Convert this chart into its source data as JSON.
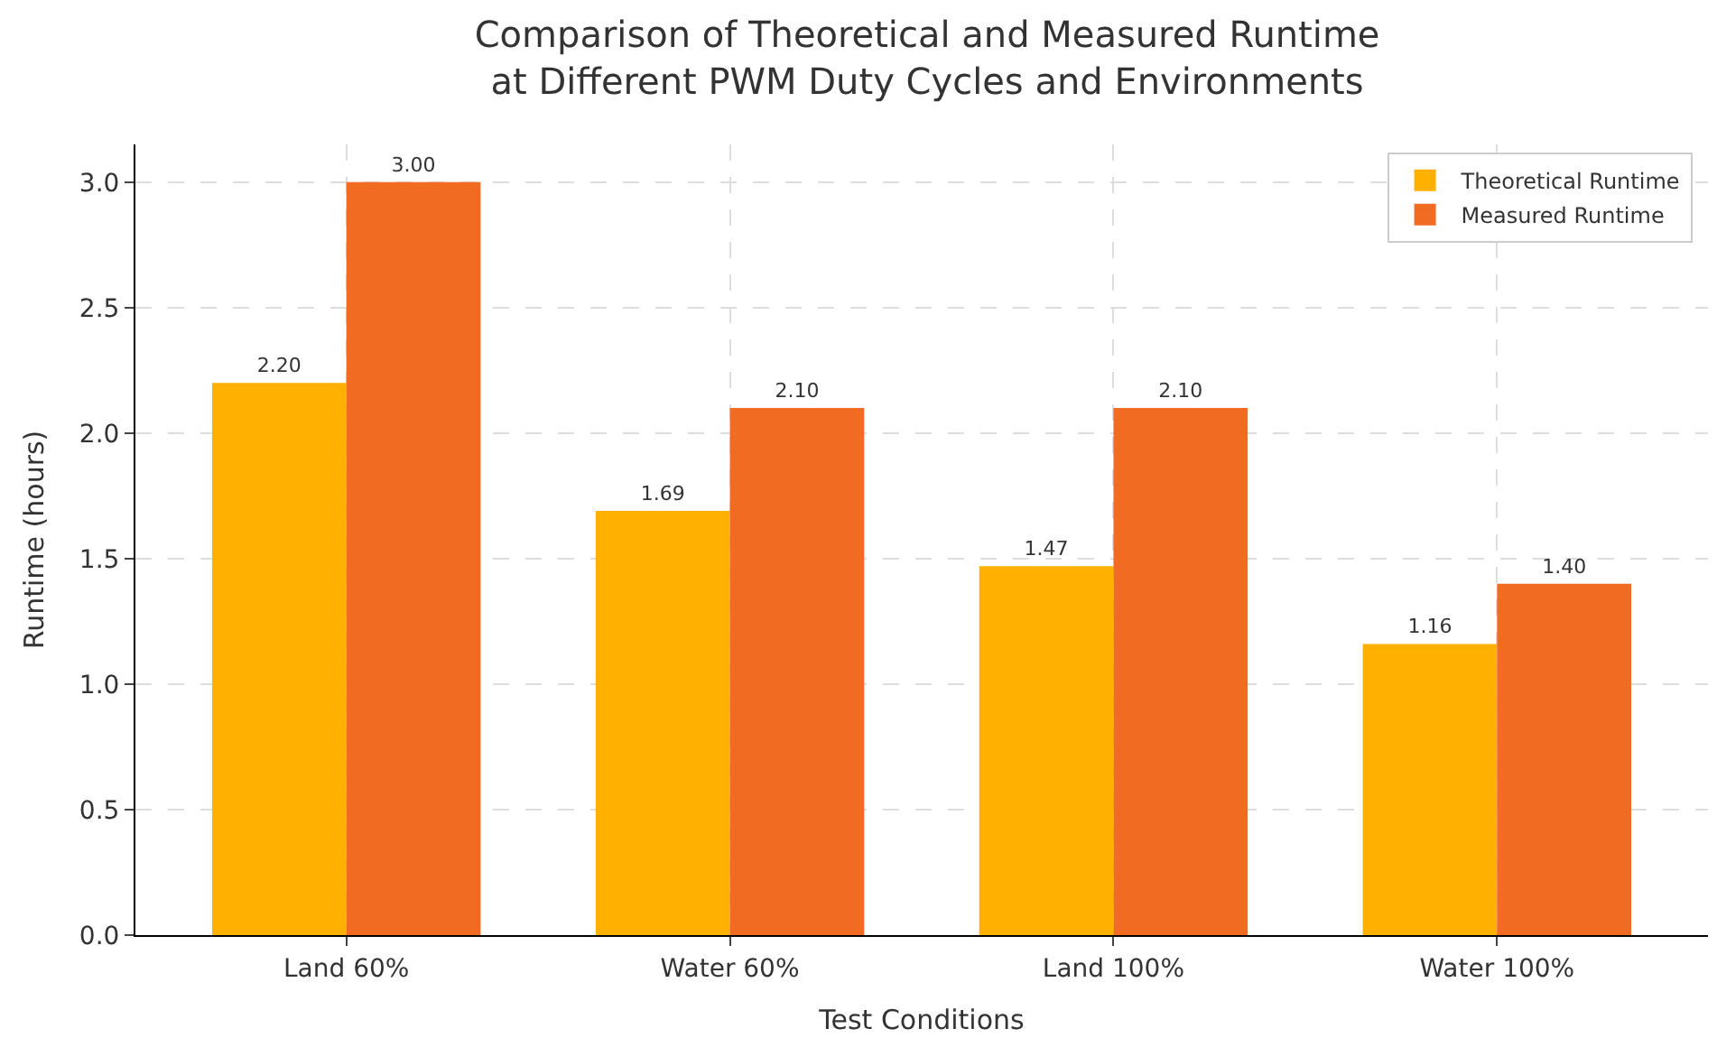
{
  "chart_data": {
    "type": "bar",
    "title": "Comparison of Theoretical and Measured Runtime\nat Different PWM Duty Cycles and Environments",
    "xlabel": "Test Conditions",
    "ylabel": "Runtime (hours)",
    "categories": [
      "Land 60%",
      "Water 60%",
      "Land 100%",
      "Water 100%"
    ],
    "series": [
      {
        "name": "Theoretical Runtime",
        "color": "#ffb000",
        "values": [
          2.2,
          1.69,
          1.47,
          1.16
        ],
        "value_labels": [
          "2.20",
          "1.69",
          "1.47",
          "1.16"
        ]
      },
      {
        "name": "Measured Runtime",
        "color": "#f26b22",
        "values": [
          3.0,
          2.1,
          2.1,
          1.4
        ],
        "value_labels": [
          "3.00",
          "2.10",
          "2.10",
          "1.40"
        ]
      }
    ],
    "ylim": [
      0,
      3.15
    ],
    "yticks": [
      {
        "value": 0,
        "label": "0.0"
      },
      0.5,
      {
        "value": 1,
        "label": "1.0"
      },
      1.5,
      {
        "value": 2,
        "label": "2.0"
      },
      2.5,
      {
        "value": 3,
        "label": "3.0"
      }
    ],
    "grid": true,
    "legend": "top right"
  }
}
